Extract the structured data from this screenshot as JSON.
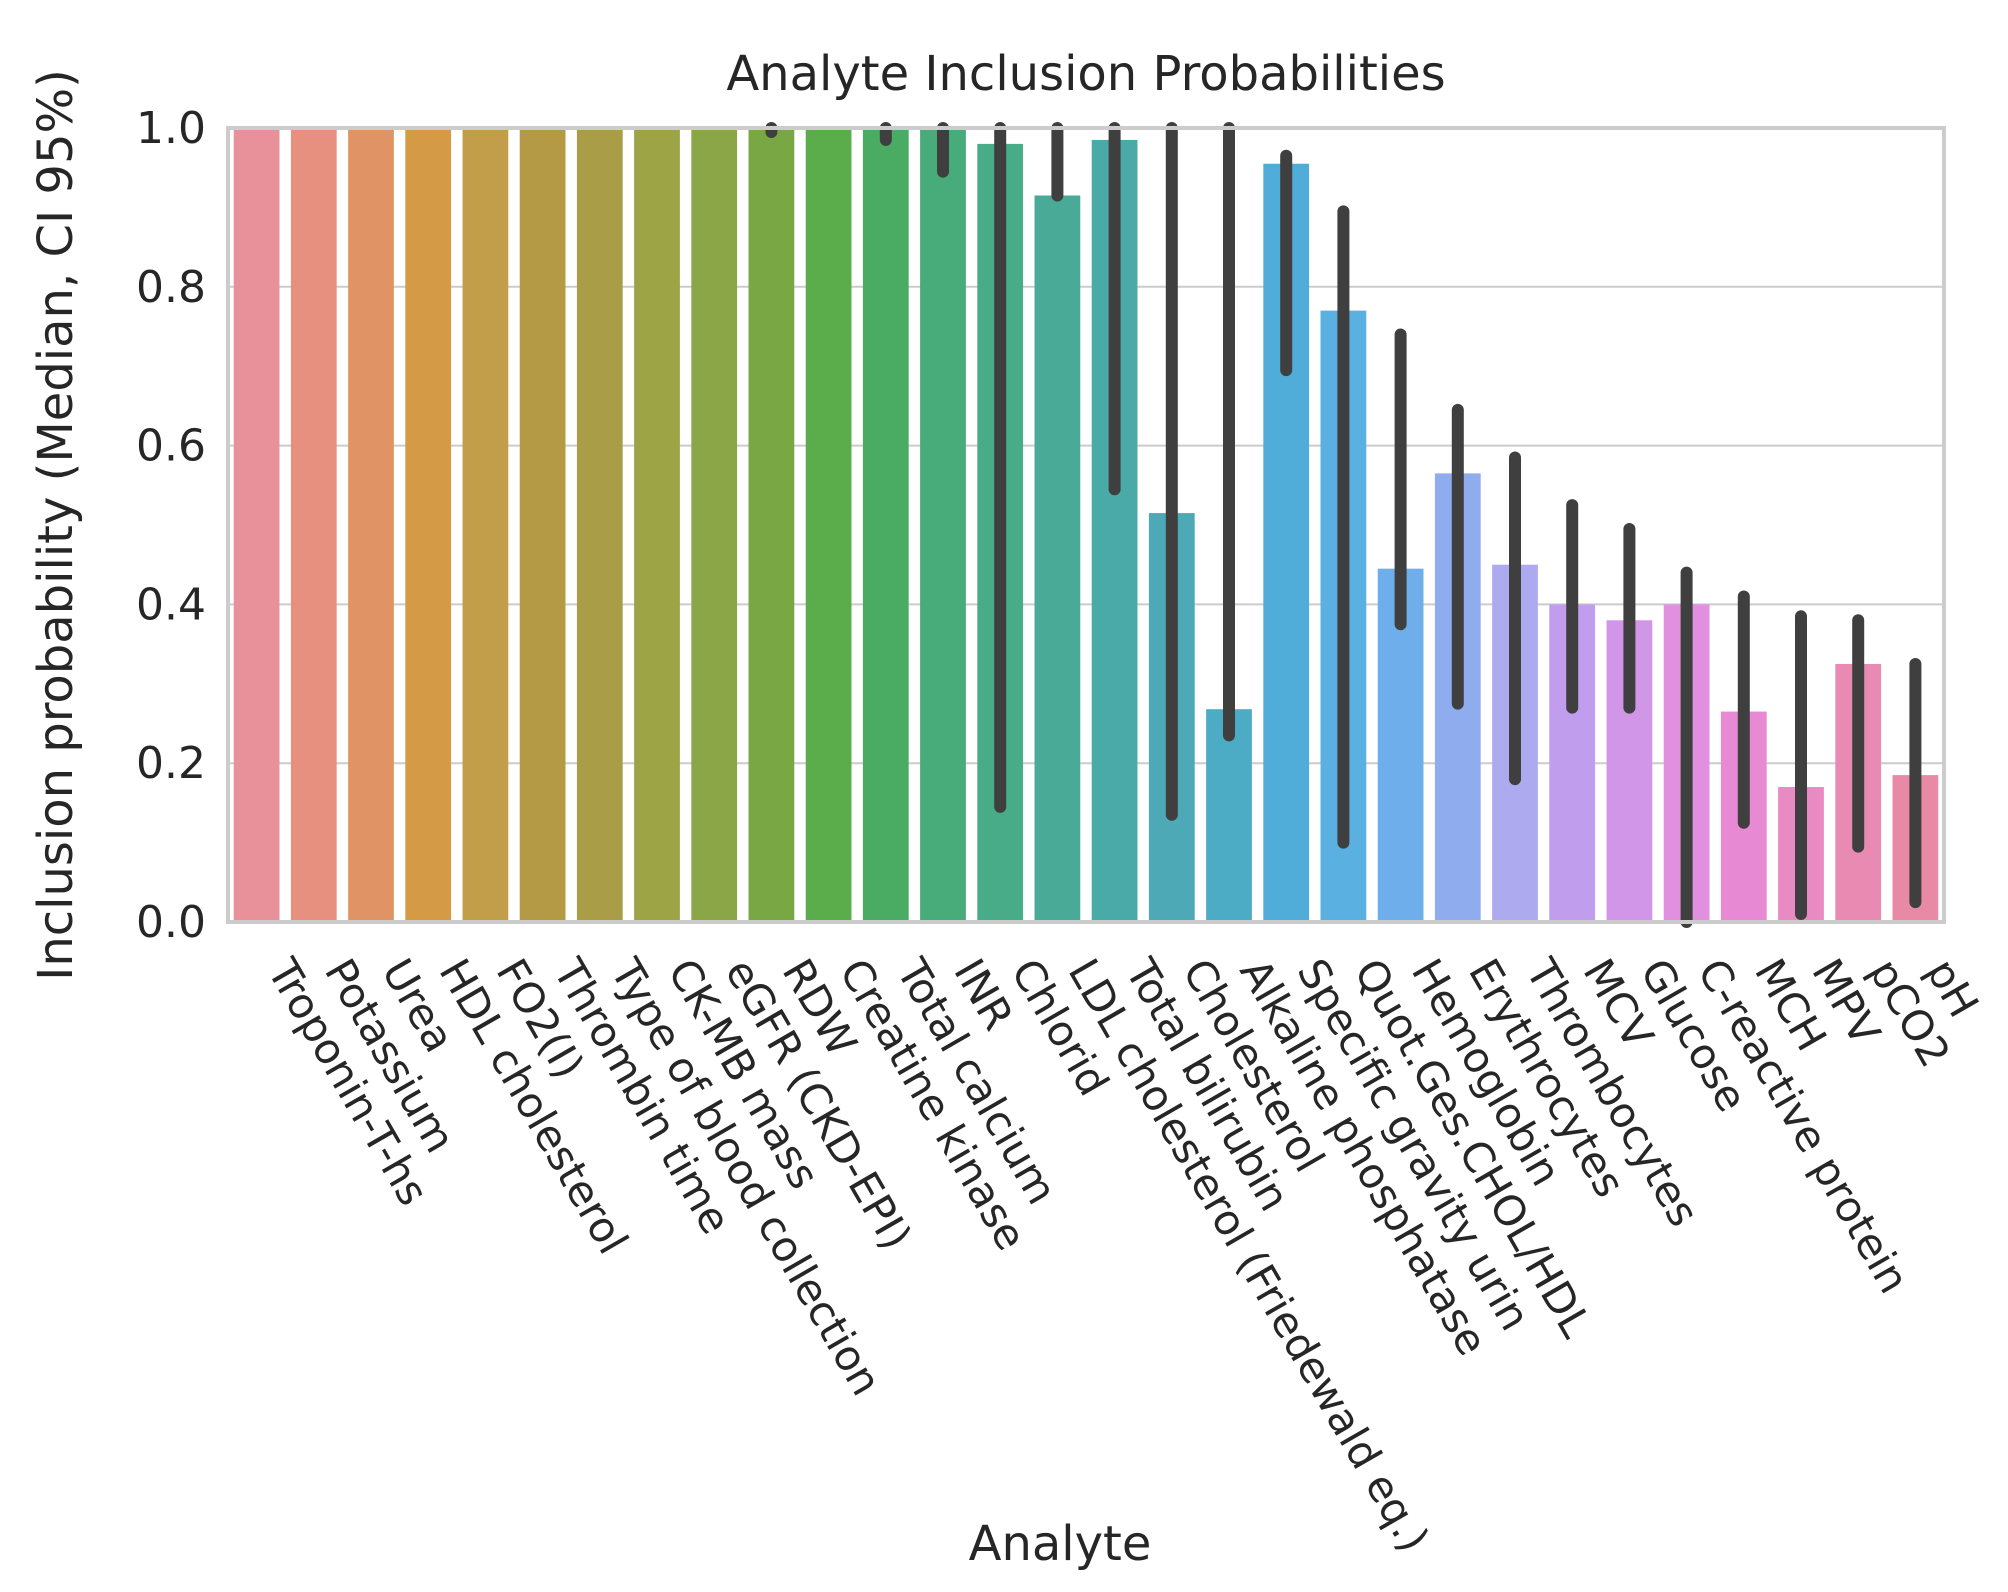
{
  "chart_data": {
    "type": "bar",
    "title": "Analyte Inclusion Probabilities",
    "xlabel": "Analyte",
    "ylabel": "Inclusion probability (Median, CI 95%)",
    "ylim": [
      0.0,
      1.0
    ],
    "yticks": [
      "0.0",
      "0.2",
      "0.4",
      "0.6",
      "0.8",
      "1.0"
    ],
    "grid": true,
    "categories": [
      "Troponin-T-hs",
      "Potassium",
      "Urea",
      "HDL cholesterol",
      "FO2(I)",
      "Thrombin time",
      "Type of blood collection",
      "CK-MB mass",
      "eGFR (CKD-EPI)",
      "RDW",
      "Creatine kinase",
      "Total calcium",
      "INR",
      "Chlorid",
      "LDL cholesterol (Friedewald eq.)",
      "Total bilirubin",
      "Cholesterol",
      "Alkaline phosphatase",
      "Specific gravity urin",
      "Quot.Ges.CHOL/HDL",
      "Hemoglobin",
      "Erythrocytes",
      "Thrombocytes",
      "MCV",
      "Glucose",
      "C-reactive protein",
      "MCH",
      "MPV",
      "pCO2",
      "pH"
    ],
    "values": [
      1.0,
      1.0,
      1.0,
      1.0,
      1.0,
      1.0,
      1.0,
      1.0,
      1.0,
      1.0,
      1.0,
      1.0,
      1.0,
      0.98,
      0.915,
      0.985,
      0.515,
      0.268,
      0.955,
      0.77,
      0.445,
      0.565,
      0.45,
      0.4,
      0.38,
      0.4,
      0.265,
      0.17,
      0.325,
      0.185
    ],
    "ci_low": [
      1.0,
      1.0,
      1.0,
      1.0,
      1.0,
      1.0,
      1.0,
      1.0,
      1.0,
      0.995,
      1.0,
      0.985,
      0.945,
      0.145,
      0.915,
      0.545,
      0.135,
      0.235,
      0.695,
      0.1,
      0.375,
      0.275,
      0.18,
      0.27,
      0.27,
      0.0,
      0.125,
      0.01,
      0.095,
      0.025
    ],
    "ci_high": [
      1.0,
      1.0,
      1.0,
      1.0,
      1.0,
      1.0,
      1.0,
      1.0,
      1.0,
      1.0,
      1.0,
      1.0,
      1.0,
      1.0,
      1.0,
      1.0,
      1.0,
      1.0,
      0.965,
      0.895,
      0.74,
      0.645,
      0.585,
      0.525,
      0.495,
      0.44,
      0.41,
      0.385,
      0.38,
      0.325
    ],
    "colors": [
      "#e8919b",
      "#e8907f",
      "#e09465",
      "#d49a45",
      "#c29d4a",
      "#b59a45",
      "#a99d47",
      "#9da445",
      "#8aa646",
      "#79a743",
      "#5aad4a",
      "#4aab63",
      "#48ab7a",
      "#49ac89",
      "#4aaa98",
      "#4aaaa7",
      "#4ca9b5",
      "#4cabc5",
      "#50acd8",
      "#5ab0e0",
      "#6eaeea",
      "#8fadee",
      "#adaaf0",
      "#c09ded",
      "#d296e8",
      "#e090df",
      "#e88ad3",
      "#ea8ac3",
      "#e98ab3",
      "#e88aa6"
    ]
  }
}
